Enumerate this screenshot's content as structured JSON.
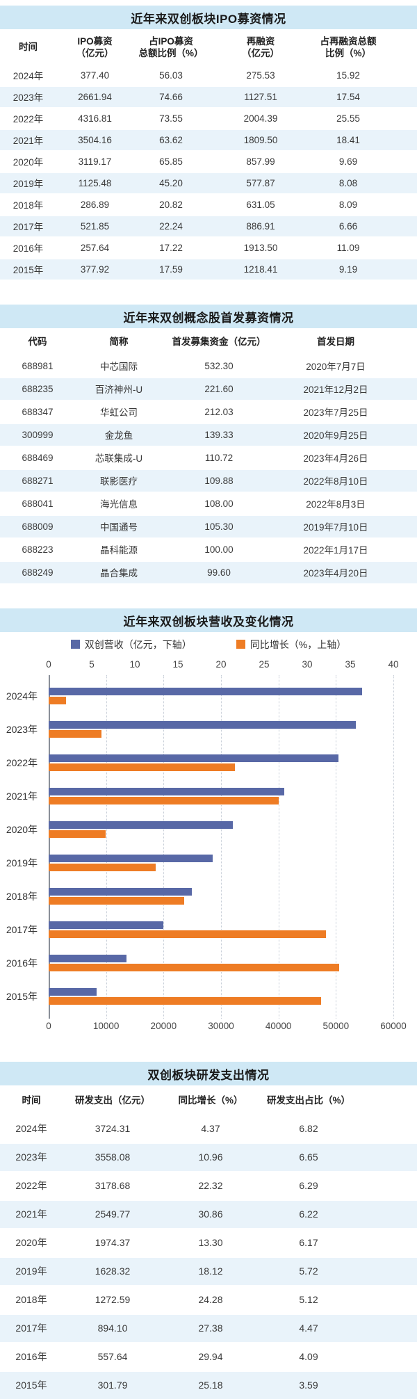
{
  "colors": {
    "title_bar_bg": "#cfe8f5",
    "row_stripe_bg": "#e9f3fa",
    "revenue_bar": "#5868a6",
    "growth_bar": "#ee7c24",
    "text": "#333333"
  },
  "chart_data": [
    {
      "type": "table",
      "title": "近年来双创板块IPO募资情况",
      "columns": [
        "时间",
        "IPO募资\n（亿元）",
        "占IPO募资\n总额比例（%）",
        "再融资\n（亿元）",
        "占再融资总额\n比例（%）"
      ],
      "rows": [
        [
          "2024年",
          "377.40",
          "56.03",
          "275.53",
          "15.92"
        ],
        [
          "2023年",
          "2661.94",
          "74.66",
          "1127.51",
          "17.54"
        ],
        [
          "2022年",
          "4316.81",
          "73.55",
          "2004.39",
          "25.55"
        ],
        [
          "2021年",
          "3504.16",
          "63.62",
          "1809.50",
          "18.41"
        ],
        [
          "2020年",
          "3119.17",
          "65.85",
          "857.99",
          "9.69"
        ],
        [
          "2019年",
          "1125.48",
          "45.20",
          "577.87",
          "8.08"
        ],
        [
          "2018年",
          "286.89",
          "20.82",
          "631.05",
          "8.09"
        ],
        [
          "2017年",
          "521.85",
          "22.24",
          "886.91",
          "6.66"
        ],
        [
          "2016年",
          "257.64",
          "17.22",
          "1913.50",
          "11.09"
        ],
        [
          "2015年",
          "377.92",
          "17.59",
          "1218.41",
          "9.19"
        ]
      ]
    },
    {
      "type": "table",
      "title": "近年来双创概念股首发募资情况",
      "columns": [
        "代码",
        "简称",
        "首发募集资金（亿元）",
        "首发日期"
      ],
      "rows": [
        [
          "688981",
          "中芯国际",
          "532.30",
          "2020年7月7日"
        ],
        [
          "688235",
          "百济神州-U",
          "221.60",
          "2021年12月2日"
        ],
        [
          "688347",
          "华虹公司",
          "212.03",
          "2023年7月25日"
        ],
        [
          "300999",
          "金龙鱼",
          "139.33",
          "2020年9月25日"
        ],
        [
          "688469",
          "芯联集成-U",
          "110.72",
          "2023年4月26日"
        ],
        [
          "688271",
          "联影医疗",
          "109.88",
          "2022年8月10日"
        ],
        [
          "688041",
          "海光信息",
          "108.00",
          "2022年8月3日"
        ],
        [
          "688009",
          "中国通号",
          "105.30",
          "2019年7月10日"
        ],
        [
          "688223",
          "晶科能源",
          "100.00",
          "2022年1月17日"
        ],
        [
          "688249",
          "晶合集成",
          "99.60",
          "2023年4月20日"
        ]
      ]
    },
    {
      "type": "bar",
      "orientation": "horizontal",
      "title": "近年来双创板块营收及变化情况",
      "categories": [
        "2024年",
        "2023年",
        "2022年",
        "2021年",
        "2020年",
        "2019年",
        "2018年",
        "2017年",
        "2016年",
        "2015年"
      ],
      "series": [
        {
          "name": "双创营收（亿元，下轴）",
          "axis": "bottom",
          "color": "#5868a6",
          "values": [
            54600,
            53500,
            50500,
            41000,
            32000,
            28500,
            24900,
            20000,
            13600,
            8400
          ]
        },
        {
          "name": "同比增长（%，上轴）",
          "axis": "top",
          "color": "#ee7c24",
          "values": [
            2.0,
            6.1,
            21.6,
            26.7,
            6.6,
            12.4,
            15.7,
            32.2,
            33.7,
            31.6
          ]
        }
      ],
      "top_axis": {
        "min": 0,
        "max": 40,
        "ticks": [
          0,
          5,
          10,
          15,
          20,
          25,
          30,
          35,
          40
        ]
      },
      "bottom_axis": {
        "min": 0,
        "max": 60000,
        "ticks": [
          0,
          10000,
          20000,
          30000,
          40000,
          50000,
          60000
        ]
      },
      "grid": "vertical-dotted",
      "legend_position": "top"
    },
    {
      "type": "table",
      "title": "双创板块研发支出情况",
      "columns": [
        "时间",
        "研发支出（亿元）",
        "同比增长（%）",
        "研发支出占比（%）"
      ],
      "rows": [
        [
          "2024年",
          "3724.31",
          "4.37",
          "6.82"
        ],
        [
          "2023年",
          "3558.08",
          "10.96",
          "6.65"
        ],
        [
          "2022年",
          "3178.68",
          "22.32",
          "6.29"
        ],
        [
          "2021年",
          "2549.77",
          "30.86",
          "6.22"
        ],
        [
          "2020年",
          "1974.37",
          "13.30",
          "6.17"
        ],
        [
          "2019年",
          "1628.32",
          "18.12",
          "5.72"
        ],
        [
          "2018年",
          "1272.59",
          "24.28",
          "5.12"
        ],
        [
          "2017年",
          "894.10",
          "27.38",
          "4.47"
        ],
        [
          "2016年",
          "557.64",
          "29.94",
          "4.09"
        ],
        [
          "2015年",
          "301.79",
          "25.18",
          "3.59"
        ]
      ]
    }
  ]
}
